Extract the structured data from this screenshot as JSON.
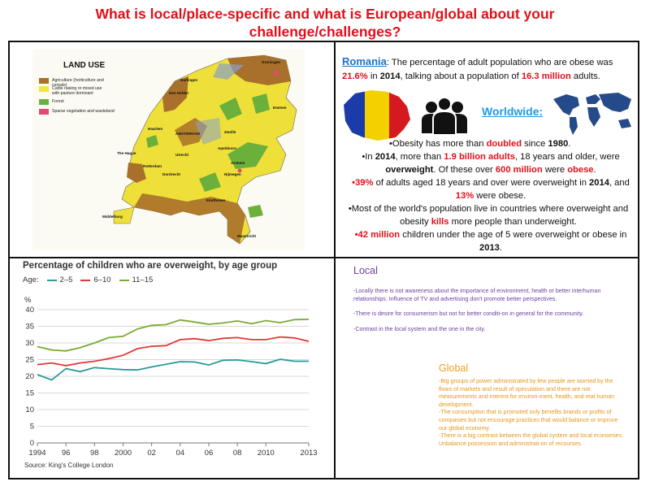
{
  "title": {
    "line1": "What is local/place-specific and what is European/global about your",
    "line2": "challenge/challenges?"
  },
  "map": {
    "legend_title": "LAND USE",
    "legend": [
      {
        "label": "Agriculture (horticulture and cereals)",
        "color": "#a8702a"
      },
      {
        "label": "Cattle raising or mixed use with pasture dominant",
        "color": "#f0e640"
      },
      {
        "label": "Forest",
        "color": "#6cb03c"
      },
      {
        "label": "Sparse vegetation and wasteland",
        "color": "#e04a78"
      }
    ],
    "cities": [
      "Groningen",
      "Harlingen",
      "Den Helder",
      "Emmen",
      "Haarlem",
      "AMSTERDAM",
      "Zwolle",
      "Apeldoorn",
      "The Hague",
      "Utrecht",
      "Rotterdam",
      "Arnhem",
      "Dordrecht",
      "Nijmegen",
      "Eindhoven",
      "Middelburg",
      "Maastricht"
    ]
  },
  "romania": {
    "name": "Romania",
    "intro_a": ": The percentage of adult population who are obese was",
    "pct": "21.6%",
    "intro_b": " in ",
    "year": "2014",
    "intro_c": ", talking about a population of ",
    "pop": "16.3 million",
    "intro_d": " adults."
  },
  "worldwide": {
    "label": "Worldwide:",
    "b1": {
      "a": "•Obesity has more than ",
      "doubled": "doubled",
      "b": " since ",
      "year": "1980",
      "c": "."
    },
    "b2": {
      "a": "•In ",
      "year": "2014",
      "b": ", more than ",
      "adults": "1.9 billion adults",
      "c": ", 18 years and older, were ",
      "ow": "overweight",
      "d": ". Of these over ",
      "m600": "600 million",
      "e": " were ",
      "obese": "obese",
      "f": "."
    },
    "b3": {
      "pct": "•39%",
      "a": " of adults aged 18 years and over were overweight in ",
      "year": "2014",
      "b": ", and ",
      "pct2": "13%",
      "c": " were obese."
    },
    "b4": {
      "a": "•Most of the world's population live in countries where overweight and obesity ",
      "kills": "kills",
      "b": " more people than underweight."
    },
    "b5": {
      "m42": "•42 million",
      "a": " children under the age of 5 were overweight or obese in ",
      "year": "2013",
      "b": "."
    }
  },
  "chart_data": {
    "type": "line",
    "title": "Percentage of children who are overweight, by age group",
    "legend_prefix": "Age:",
    "ylabel": "%",
    "ylim": [
      0,
      40
    ],
    "yticks": [
      0,
      5,
      10,
      15,
      20,
      25,
      30,
      35,
      40
    ],
    "x": [
      1994,
      1995,
      1996,
      1997,
      1998,
      1999,
      2000,
      2001,
      2002,
      2003,
      2004,
      2005,
      2006,
      2007,
      2008,
      2009,
      2010,
      2011,
      2012,
      2013
    ],
    "xtick_labels": [
      "1994",
      "96",
      "98",
      "2000",
      "02",
      "04",
      "06",
      "08",
      "2010",
      "2013"
    ],
    "xtick_values": [
      1994,
      1996,
      1998,
      2000,
      2002,
      2004,
      2006,
      2008,
      2010,
      2013
    ],
    "series": [
      {
        "name": "2–5",
        "color": "#2a9a9a",
        "values": [
          20.5,
          18.9,
          22.3,
          21.4,
          22.6,
          22.3,
          22.0,
          21.9,
          22.8,
          23.6,
          24.4,
          24.3,
          23.4,
          24.8,
          24.9,
          24.4,
          23.8,
          25.1,
          24.5,
          24.5
        ]
      },
      {
        "name": "6–10",
        "color": "#e03a38",
        "values": [
          23.5,
          24.0,
          23.2,
          24.0,
          24.5,
          25.3,
          26.3,
          28.3,
          29.0,
          29.2,
          31.0,
          31.3,
          30.7,
          31.4,
          31.6,
          31.0,
          31.0,
          31.8,
          31.5,
          30.5
        ]
      },
      {
        "name": "11–15",
        "color": "#7aaa32",
        "values": [
          28.9,
          27.9,
          27.6,
          28.6,
          30.0,
          31.6,
          32.0,
          34.2,
          35.3,
          35.5,
          36.9,
          36.3,
          35.6,
          36.0,
          36.6,
          35.8,
          36.7,
          36.1,
          37.0,
          37.1
        ]
      }
    ],
    "source": "Source: King's College London"
  },
  "local": {
    "heading": "Local",
    "p1": "-Locally there is not awareness about the importance of environment, health or better interhuman relationships. Influence of TV and advertising don't promote better perspectives.",
    "p2": "-There is desire for consumerism but not for better conditi-on in general for the community.",
    "p3": "-Contrast in the local system and the one in the city."
  },
  "global": {
    "heading": "Global",
    "p1": "-Big groups of power administrated by few people are worried by the flows of markets and result of speculation and there are not measurements and interest for environ-ment, health, and real human development.",
    "p2": "-The consumption that is promoted only benefits brands or profits of companies but not encourage practices that would balance or improve our global economy.",
    "p3": "-There is a big contrast between the global system and local economies. Unbalance possession and administrati-on of recourses."
  }
}
